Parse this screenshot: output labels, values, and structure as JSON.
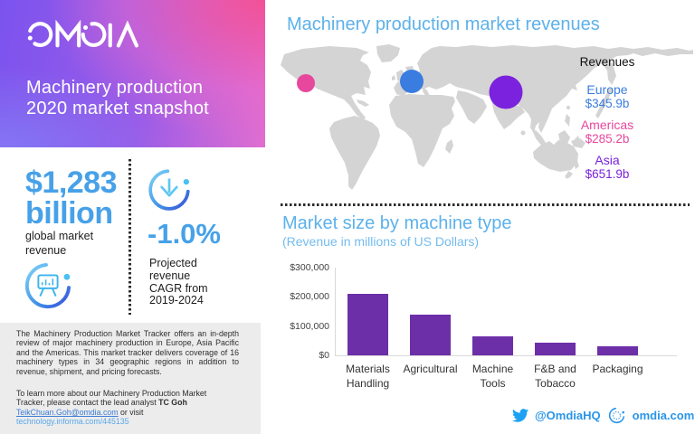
{
  "brand": {
    "logo": "OMDIA",
    "header_title": "Machinery production\n2020 market snapshot"
  },
  "stats": {
    "revenue_value": "$1,283",
    "revenue_unit": "billion",
    "revenue_caption": "global market revenue",
    "cagr_value": "-1.0%",
    "cagr_caption": "Projected revenue CAGR from 2019-2024"
  },
  "about": {
    "paragraph1": "The Machinery Production Market Tracker offers an in-depth review of major machinery production in Europe, Asia Pacific and the Americas. This market tracker delivers coverage of 16 machinery types in 34 geographic regions in addition to revenue, shipment, and pricing forecasts.",
    "paragraph2_lead": "To learn more about our Machinery Production Market\nTracker, please contact the lead analyst ",
    "analyst": "TC Goh",
    "email": "TeikChuan.Goh@omdia.com",
    "or_visit": " or visit\n",
    "website": "technology.informa.com/445135"
  },
  "map_section": {
    "title": "Machinery production market revenues",
    "legend_title": "Revenues",
    "regions": [
      {
        "name": "Europe",
        "value": "$345.9b",
        "color": "#3b7ce0"
      },
      {
        "name": "Americas",
        "value": "$285.2b",
        "color": "#e8479e"
      },
      {
        "name": "Asia",
        "value": "$651.9b",
        "color": "#7a22dd"
      }
    ]
  },
  "chart_data": {
    "type": "bar",
    "title": "Market size by machine type",
    "subtitle": "(Revenue in millions of US Dollars)",
    "categories": [
      "Materials Handling",
      "Agricultural",
      "Machine Tools",
      "F&B and Tobacco",
      "Packaging"
    ],
    "values": [
      210000,
      140000,
      66000,
      42000,
      30000
    ],
    "ylabel_ticks": [
      "$300,000",
      "$200,000",
      "$100,000",
      "$0"
    ],
    "ylim": [
      0,
      300000
    ],
    "bar_color": "#6c2fa8",
    "legend_position": "none",
    "grid": false
  },
  "footer": {
    "twitter": "@OmdiaHQ",
    "website": "omdia.com"
  }
}
